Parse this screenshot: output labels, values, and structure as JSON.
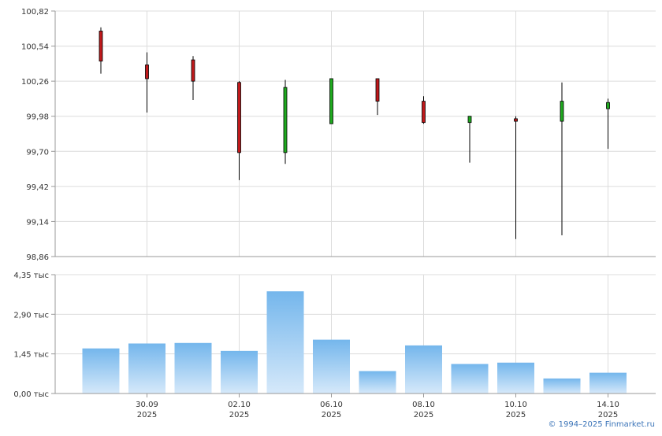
{
  "chart_data": [
    {
      "type": "candlestick",
      "y_ticks": [
        "100,82",
        "100,54",
        "100,26",
        "99,98",
        "99,70",
        "99,42",
        "99,14",
        "98,86"
      ],
      "ylim": [
        98.86,
        100.82
      ],
      "x_ticks": [
        {
          "date": "30.09",
          "year": "2025"
        },
        {
          "date": "02.10",
          "year": "2025"
        },
        {
          "date": "06.10",
          "year": "2025"
        },
        {
          "date": "08.10",
          "year": "2025"
        },
        {
          "date": "10.10",
          "year": "2025"
        },
        {
          "date": "14.10",
          "year": "2025"
        }
      ],
      "up_color": "#1faa1f",
      "down_color": "#c0191b",
      "candles": [
        {
          "date": "29.09.2025",
          "open": 100.66,
          "high": 100.69,
          "low": 100.32,
          "close": 100.42
        },
        {
          "date": "30.09.2025",
          "open": 100.39,
          "high": 100.49,
          "low": 100.01,
          "close": 100.28
        },
        {
          "date": "01.10.2025",
          "open": 100.43,
          "high": 100.46,
          "low": 100.11,
          "close": 100.26
        },
        {
          "date": "02.10.2025",
          "open": 100.25,
          "high": 100.26,
          "low": 99.47,
          "close": 99.69
        },
        {
          "date": "03.10.2025",
          "open": 99.69,
          "high": 100.27,
          "low": 99.6,
          "close": 100.21
        },
        {
          "date": "06.10.2025",
          "open": 99.92,
          "high": 100.28,
          "low": 99.92,
          "close": 100.28
        },
        {
          "date": "07.10.2025",
          "open": 100.28,
          "high": 100.28,
          "low": 99.99,
          "close": 100.1
        },
        {
          "date": "08.10.2025",
          "open": 100.1,
          "high": 100.14,
          "low": 99.92,
          "close": 99.93
        },
        {
          "date": "09.10.2025",
          "open": 99.93,
          "high": 99.98,
          "low": 99.61,
          "close": 99.98
        },
        {
          "date": "10.10.2025",
          "open": 99.96,
          "high": 99.98,
          "low": 99.0,
          "close": 99.94
        },
        {
          "date": "13.10.2025",
          "open": 99.94,
          "high": 100.25,
          "low": 99.03,
          "close": 100.1
        },
        {
          "date": "14.10.2025",
          "open": 100.04,
          "high": 100.12,
          "low": 99.72,
          "close": 100.09
        }
      ]
    },
    {
      "type": "bar",
      "y_ticks": [
        "4,35 тыс",
        "2,90 тыс",
        "1,45 тыс",
        "0,00 тыс"
      ],
      "ylim": [
        0,
        4350
      ],
      "bar_color_top": "#74b6ec",
      "bar_color_bottom": "#d6e9fa",
      "values": [
        1650,
        1830,
        1850,
        1560,
        3740,
        1970,
        820,
        1760,
        1080,
        1130,
        550,
        760
      ]
    }
  ],
  "footer": {
    "copyright": "© 1994–2025 Finmarket.ru"
  }
}
